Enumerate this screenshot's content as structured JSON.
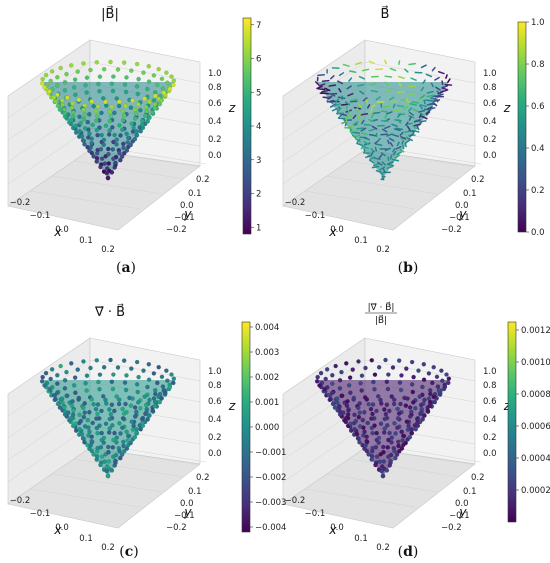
{
  "chart_data": [
    {
      "type": "scatter",
      "panel": "a",
      "title": "|B⃗|",
      "caption_letter": "a",
      "xlabel": "x",
      "ylabel": "y",
      "zlabel": "z",
      "x_ticks": [
        "−0.2",
        "−0.1",
        "0.0",
        "0.1",
        "0.2"
      ],
      "y_ticks": [
        "0.2",
        "0.1",
        "0.0",
        "−0.1",
        "−0.2"
      ],
      "z_ticks": [
        "0.0",
        "0.2",
        "0.4",
        "0.6",
        "0.8",
        "1.0"
      ],
      "colorbar": {
        "ticks": [
          "1",
          "2",
          "3",
          "4",
          "5",
          "6",
          "7"
        ],
        "min": 0.8,
        "max": 7.2,
        "colormap": "viridis"
      },
      "cone": {
        "rim_value": 6.5,
        "apex_value": 1.0,
        "pattern": "smooth"
      }
    },
    {
      "type": "scatter",
      "panel": "b",
      "title": "B⃗",
      "caption_letter": "b",
      "xlabel": "x",
      "ylabel": "y",
      "zlabel": "z",
      "x_ticks": [
        "−0.2",
        "−0.1",
        "0.0",
        "0.1",
        "0.2"
      ],
      "y_ticks": [
        "0.2",
        "0.1",
        "0.0",
        "−0.1",
        "−0.2"
      ],
      "z_ticks": [
        "0.0",
        "0.2",
        "0.4",
        "0.6",
        "0.8",
        "1.0"
      ],
      "colorbar": {
        "ticks": [
          "0.0",
          "0.2",
          "0.4",
          "0.6",
          "0.8",
          "1.0"
        ],
        "min": 0.0,
        "max": 1.0,
        "colormap": "viridis"
      },
      "cone": {
        "rim_value": 0.75,
        "apex_value": 0.2,
        "pattern": "arrows"
      }
    },
    {
      "type": "scatter",
      "panel": "c",
      "title": "∇⃗ · B⃗",
      "caption_letter": "c",
      "xlabel": "x",
      "ylabel": "y",
      "zlabel": "z",
      "x_ticks": [
        "−0.2",
        "−0.1",
        "0.0",
        "0.1",
        "0.2"
      ],
      "y_ticks": [
        "0.2",
        "0.1",
        "0.0",
        "−0.1",
        "−0.2"
      ],
      "z_ticks": [
        "0.0",
        "0.2",
        "0.4",
        "0.6",
        "0.8",
        "1.0"
      ],
      "colorbar": {
        "ticks": [
          "0.004",
          "0.003",
          "0.002",
          "0.001",
          "0.000",
          "−0.001",
          "−0.002",
          "−0.003",
          "−0.004"
        ],
        "min": -0.0042,
        "max": 0.0042,
        "colormap": "viridis"
      },
      "cone": {
        "rim_value": 0.0005,
        "apex_value": 0.0,
        "pattern": "noise"
      }
    },
    {
      "type": "scatter",
      "panel": "d",
      "title_num": "|∇⃗ · B⃗|",
      "title_den": "|B⃗|",
      "caption_letter": "d",
      "xlabel": "x",
      "ylabel": "y",
      "zlabel": "z",
      "x_ticks": [
        "−0.2",
        "−0.1",
        "0.0",
        "0.1",
        "0.2"
      ],
      "y_ticks": [
        "0.2",
        "0.1",
        "0.0",
        "−0.1",
        "−0.2"
      ],
      "z_ticks": [
        "0.0",
        "0.2",
        "0.4",
        "0.6",
        "0.8",
        "1.0"
      ],
      "colorbar": {
        "ticks": [
          "0.0012",
          "0.0010",
          "0.0008",
          "0.0006",
          "0.0004",
          "0.0002"
        ],
        "min": 0.0,
        "max": 0.00125,
        "colormap": "viridis"
      },
      "cone": {
        "rim_value": 0.0001,
        "apex_value": 5e-05,
        "pattern": "low"
      }
    }
  ]
}
